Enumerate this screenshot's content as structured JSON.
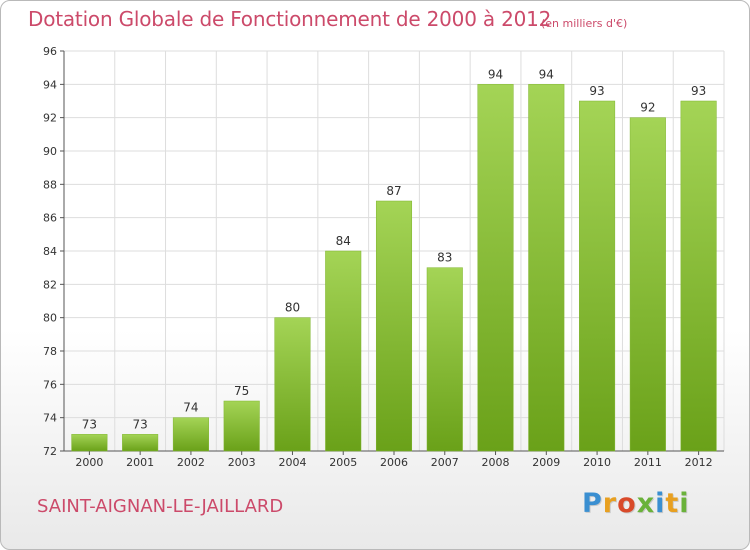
{
  "header": {
    "title": "Dotation Globale de Fonctionnement de 2000 à 2012",
    "unit": "(en milliers d'€)"
  },
  "footer": {
    "commune": "SAINT-AIGNAN-LE-JAILLARD",
    "logo_text": "Proxiti"
  },
  "colors": {
    "title": "#cc4a6a",
    "bar_light": "#a4d456",
    "bar_dark": "#6aa119",
    "grid": "#dddddd"
  },
  "chart_data": {
    "type": "bar",
    "categories": [
      "2000",
      "2001",
      "2002",
      "2003",
      "2004",
      "2005",
      "2006",
      "2007",
      "2008",
      "2009",
      "2010",
      "2011",
      "2012"
    ],
    "values": [
      73,
      73,
      74,
      75,
      80,
      84,
      87,
      83,
      94,
      94,
      93,
      92,
      93
    ],
    "ylim": [
      72,
      96
    ],
    "yticks": [
      72,
      74,
      76,
      78,
      80,
      82,
      84,
      86,
      88,
      90,
      92,
      94,
      96
    ],
    "grid": true,
    "data_labels": true
  }
}
